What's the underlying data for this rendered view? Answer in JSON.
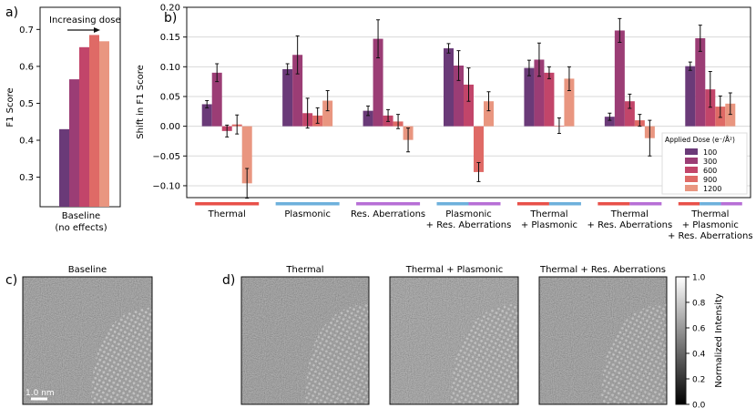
{
  "colors": {
    "dose": [
      "#6a3a78",
      "#9b3d75",
      "#c2456a",
      "#df6a66",
      "#e99680"
    ],
    "axis": "#111111",
    "grid": "#d8d8d8",
    "condition_thermal": "#e8514a",
    "condition_plasmonic": "#6eb1dc",
    "condition_aberrations": "#b76fd6"
  },
  "panel_a": {
    "label": "a)",
    "ylabel": "F1 Score",
    "annotation": "Increasing dose",
    "xtick": [
      "Baseline",
      "(no effects)"
    ]
  },
  "panel_b": {
    "label": "b)",
    "ylabel": "Shift in F1 Score",
    "legend_title": "Applied Dose (e⁻/Å²)",
    "legend_labels": [
      "100",
      "300",
      "600",
      "900",
      "1200"
    ],
    "groups": [
      {
        "lines": [
          "Thermal"
        ],
        "conditions": [
          "thermal"
        ]
      },
      {
        "lines": [
          "Plasmonic"
        ],
        "conditions": [
          "plasmonic"
        ]
      },
      {
        "lines": [
          "Res. Aberrations"
        ],
        "conditions": [
          "aberrations"
        ]
      },
      {
        "lines": [
          "Plasmonic",
          "+ Res. Aberrations"
        ],
        "conditions": [
          "plasmonic",
          "aberrations"
        ]
      },
      {
        "lines": [
          "Thermal",
          "+ Plasmonic"
        ],
        "conditions": [
          "thermal",
          "plasmonic"
        ]
      },
      {
        "lines": [
          "Thermal",
          "+ Res. Aberrations"
        ],
        "conditions": [
          "thermal",
          "aberrations"
        ]
      },
      {
        "lines": [
          "Thermal",
          "+ Plasmonic",
          "+ Res. Aberrations"
        ],
        "conditions": [
          "thermal",
          "plasmonic",
          "aberrations"
        ]
      }
    ]
  },
  "panel_c": {
    "label": "c)",
    "title": "Baseline",
    "scale_bar": "1.0 nm"
  },
  "panel_d": {
    "label": "d)",
    "titles": [
      "Thermal",
      "Thermal + Plasmonic",
      "Thermal + Res. Aberrations"
    ]
  },
  "colorbar": {
    "label": "Normalized Intensity",
    "ticks": [
      "0.0",
      "0.2",
      "0.4",
      "0.6",
      "0.8",
      "1.0"
    ]
  },
  "chart_data": [
    {
      "type": "bar",
      "panel": "a",
      "categories": [
        "Baseline (no effects)"
      ],
      "series": [
        {
          "name": "100",
          "values": [
            0.43
          ]
        },
        {
          "name": "300",
          "values": [
            0.565
          ]
        },
        {
          "name": "600",
          "values": [
            0.652
          ]
        },
        {
          "name": "900",
          "values": [
            0.685
          ]
        },
        {
          "name": "1200",
          "values": [
            0.668
          ]
        }
      ],
      "ylabel": "F1 Score",
      "ylim": [
        0.22,
        0.76
      ],
      "yticks": [
        "0.3",
        "0.4",
        "0.5",
        "0.6",
        "0.7"
      ],
      "ytick_values": [
        0.3,
        0.4,
        0.5,
        0.6,
        0.7
      ],
      "grid": false
    },
    {
      "type": "bar",
      "panel": "b",
      "categories": [
        "Thermal",
        "Plasmonic",
        "Res. Aberrations",
        "Plasmonic + Res. Aberrations",
        "Thermal + Plasmonic",
        "Thermal + Res. Aberrations",
        "Thermal + Plasmonic + Res. Aberrations"
      ],
      "series": [
        {
          "name": "100",
          "values": [
            0.037,
            0.096,
            0.026,
            0.131,
            0.098,
            0.016,
            0.101
          ],
          "errors": [
            0.006,
            0.009,
            0.008,
            0.008,
            0.013,
            0.006,
            0.007
          ]
        },
        {
          "name": "300",
          "values": [
            0.09,
            0.12,
            0.147,
            0.102,
            0.112,
            0.161,
            0.148
          ],
          "errors": [
            0.015,
            0.032,
            0.032,
            0.025,
            0.028,
            0.02,
            0.022
          ]
        },
        {
          "name": "600",
          "values": [
            -0.008,
            0.022,
            0.018,
            0.07,
            0.09,
            0.042,
            0.062
          ],
          "errors": [
            0.01,
            0.025,
            0.01,
            0.028,
            0.01,
            0.012,
            0.03
          ]
        },
        {
          "name": "900",
          "values": [
            0.003,
            0.018,
            0.008,
            -0.077,
            0.001,
            0.01,
            0.033
          ],
          "errors": [
            0.016,
            0.013,
            0.012,
            0.016,
            0.013,
            0.01,
            0.018
          ]
        },
        {
          "name": "1200",
          "values": [
            -0.096,
            0.043,
            -0.023,
            0.042,
            0.08,
            -0.02,
            0.038
          ],
          "errors": [
            0.025,
            0.017,
            0.02,
            0.016,
            0.02,
            0.03,
            0.018
          ]
        }
      ],
      "ylabel": "Shift in F1 Score",
      "ylim": [
        -0.12,
        0.2
      ],
      "yticks": [
        "−0.10",
        "−0.05",
        "0.00",
        "0.05",
        "0.10",
        "0.15",
        "0.20"
      ],
      "ytick_values": [
        -0.1,
        -0.05,
        0.0,
        0.05,
        0.1,
        0.15,
        0.2
      ],
      "grid": true,
      "legend": "bottom-right"
    }
  ]
}
